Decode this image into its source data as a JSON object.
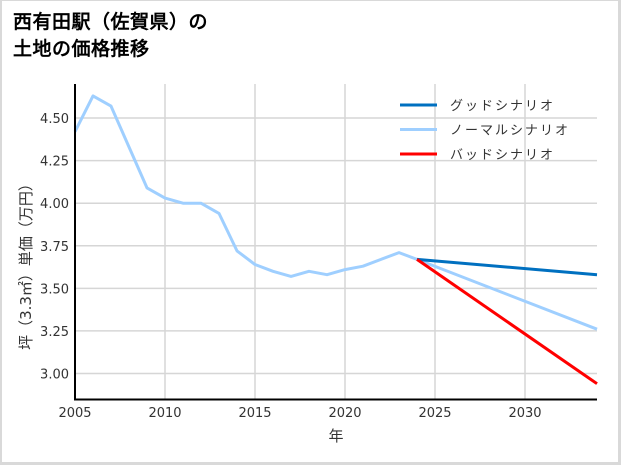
{
  "title": {
    "line1": "西有田駅（佐賀県）の",
    "line2": "土地の価格推移"
  },
  "chart_data": {
    "type": "line",
    "title": "西有田駅（佐賀県）の土地の価格推移",
    "xlabel": "年",
    "ylabel": "坪（3.3㎡）単価（万円）",
    "xlim": [
      2005,
      2034
    ],
    "ylim": [
      2.85,
      4.7
    ],
    "x_ticks": [
      2005,
      2010,
      2015,
      2020,
      2025,
      2030
    ],
    "x_tick_labels": [
      "2005",
      "2010",
      "2015",
      "2020",
      "2025",
      "2030"
    ],
    "y_ticks": [
      3.0,
      3.25,
      3.5,
      3.75,
      4.0,
      4.25,
      4.5
    ],
    "y_tick_labels": [
      "3.00",
      "3.25",
      "3.50",
      "3.75",
      "4.00",
      "4.25",
      "4.50"
    ],
    "grid": true,
    "legend_position": "upper right",
    "series": [
      {
        "name": "グッドシナリオ",
        "color": "#0070c0",
        "x": [
          2024,
          2034
        ],
        "values": [
          3.67,
          3.58
        ]
      },
      {
        "name": "ノーマルシナリオ",
        "color": "#9fcfff",
        "x": [
          2005,
          2006,
          2007,
          2008,
          2009,
          2010,
          2011,
          2012,
          2013,
          2014,
          2015,
          2016,
          2017,
          2018,
          2019,
          2020,
          2021,
          2022,
          2023,
          2024,
          2034
        ],
        "values": [
          4.42,
          4.63,
          4.57,
          4.33,
          4.09,
          4.03,
          4.0,
          4.0,
          3.94,
          3.72,
          3.64,
          3.6,
          3.57,
          3.6,
          3.58,
          3.61,
          3.63,
          3.67,
          3.71,
          3.67,
          3.26
        ]
      },
      {
        "name": "バッドシナリオ",
        "color": "#ff0000",
        "x": [
          2024,
          2034
        ],
        "values": [
          3.67,
          2.94
        ]
      }
    ]
  },
  "legend": {
    "items": [
      {
        "label": "グッドシナリオ",
        "color": "#0070c0"
      },
      {
        "label": "ノーマルシナリオ",
        "color": "#9fcfff"
      },
      {
        "label": "バッドシナリオ",
        "color": "#ff0000"
      }
    ]
  }
}
